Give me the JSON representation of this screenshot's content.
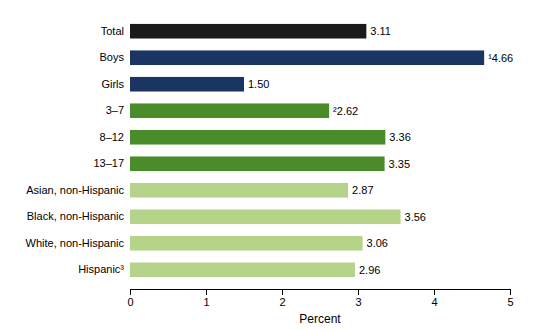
{
  "chart_data": {
    "type": "bar",
    "orientation": "horizontal",
    "categories": [
      "Hispanic³",
      "White, non-Hispanic",
      "Black, non-Hispanic",
      "Asian, non-Hispanic",
      "13–17",
      "8–12",
      "3–7",
      "Girls",
      "Boys",
      "Total"
    ],
    "values": [
      2.96,
      3.06,
      3.56,
      2.87,
      3.35,
      3.36,
      2.62,
      1.5,
      4.66,
      3.11
    ],
    "value_labels": [
      "2.96",
      "3.06",
      "3.56",
      "2.87",
      "3.35",
      "3.36",
      "²2.62",
      "1.50",
      "¹4.66",
      "3.11"
    ],
    "colors": [
      "#b5d48a",
      "#b5d48a",
      "#b5d48a",
      "#b5d48a",
      "#4a8c2a",
      "#4a8c2a",
      "#4a8c2a",
      "#1b3562",
      "#1b3562",
      "#1a1a1a"
    ],
    "xlim": [
      0,
      5
    ],
    "xticks": [
      0,
      1,
      2,
      3,
      4,
      5
    ],
    "xlabel": "Percent",
    "data_labels": true,
    "grid": false
  }
}
